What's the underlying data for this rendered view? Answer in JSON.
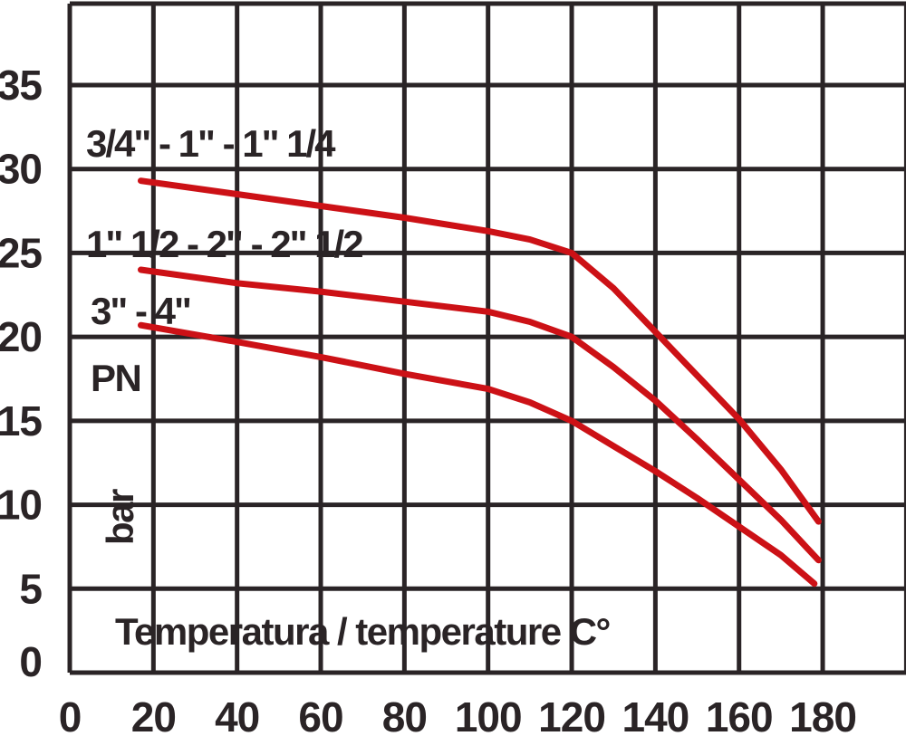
{
  "colors": {
    "background": "#ffffff",
    "grid": "#2a2426",
    "text": "#2a2426",
    "curve": "#cc1116"
  },
  "chart_data": {
    "type": "line",
    "title": "",
    "xlabel": "Temperatura / temperature C°",
    "ylabel_line1": "PN",
    "ylabel_line2": "bar",
    "xlim": [
      0,
      200
    ],
    "ylim": [
      0,
      40
    ],
    "x_tick_step": 20,
    "y_tick_step": 5,
    "grid": true,
    "legend_position": "inline-annotations",
    "x_ticks": [
      0,
      20,
      40,
      60,
      80,
      100,
      120,
      140,
      160,
      180
    ],
    "y_ticks": [
      0,
      5,
      10,
      15,
      20,
      25,
      30,
      35
    ],
    "series": [
      {
        "name": "3/4\" - 1\" - 1\" 1/4",
        "points": [
          [
            17,
            29.3
          ],
          [
            40,
            28.5
          ],
          [
            60,
            27.8
          ],
          [
            80,
            27.1
          ],
          [
            100,
            26.3
          ],
          [
            110,
            25.8
          ],
          [
            120,
            25
          ],
          [
            130,
            22.9
          ],
          [
            140,
            20.3
          ],
          [
            150,
            17.7
          ],
          [
            160,
            15.1
          ],
          [
            170,
            12.1
          ],
          [
            179,
            9.0
          ]
        ]
      },
      {
        "name": "1\" 1/2 - 2\" - 2\" 1/2",
        "points": [
          [
            17,
            24.0
          ],
          [
            40,
            23.2
          ],
          [
            60,
            22.7
          ],
          [
            80,
            22.1
          ],
          [
            100,
            21.5
          ],
          [
            110,
            20.9
          ],
          [
            120,
            20
          ],
          [
            130,
            18.2
          ],
          [
            140,
            16.2
          ],
          [
            150,
            13.9
          ],
          [
            160,
            11.5
          ],
          [
            170,
            9.1
          ],
          [
            179,
            6.7
          ]
        ]
      },
      {
        "name": "3\" - 4\"",
        "points": [
          [
            17,
            20.7
          ],
          [
            40,
            19.7
          ],
          [
            60,
            18.8
          ],
          [
            80,
            17.8
          ],
          [
            100,
            16.9
          ],
          [
            110,
            16.1
          ],
          [
            120,
            15
          ],
          [
            130,
            13.5
          ],
          [
            140,
            12.0
          ],
          [
            150,
            10.4
          ],
          [
            160,
            8.7
          ],
          [
            170,
            7.0
          ],
          [
            178,
            5.3
          ]
        ]
      }
    ]
  }
}
